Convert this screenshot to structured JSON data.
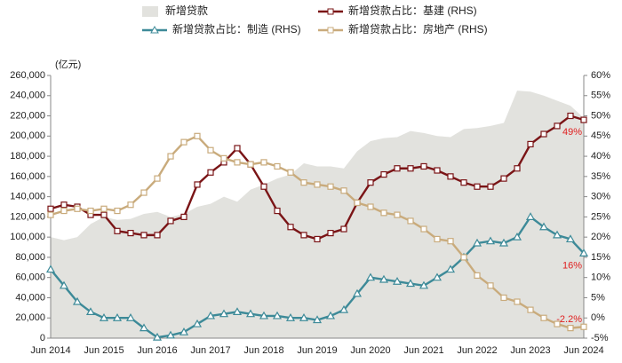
{
  "chart_data": {
    "type": "combo",
    "y_unit_label": "(亿元)",
    "categories": [
      "Jun 2014",
      null,
      null,
      null,
      "Jun 2015",
      null,
      null,
      null,
      "Jun 2016",
      null,
      null,
      null,
      "Jun 2017",
      null,
      null,
      null,
      "Jun 2018",
      null,
      null,
      null,
      "Jun 2019",
      null,
      null,
      null,
      "Jun 2020",
      null,
      null,
      null,
      "Jun 2021",
      null,
      null,
      null,
      "Jun 2022",
      null,
      null,
      null,
      "Jun 2023",
      null,
      null,
      null,
      "Jun 2024"
    ],
    "ylim": [
      0,
      260000
    ],
    "yticks": [
      0,
      {
        "value": 20000,
        "label": "20,000"
      },
      {
        "value": 40000,
        "label": "40,000"
      },
      {
        "value": 60000,
        "label": "60,000"
      },
      {
        "value": 80000,
        "label": "80,000"
      },
      {
        "value": 100000,
        "label": "100,000"
      },
      {
        "value": 120000,
        "label": "120,000"
      },
      {
        "value": 140000,
        "label": "140,000"
      },
      {
        "value": 160000,
        "label": "160,000"
      },
      {
        "value": 180000,
        "label": "180,000"
      },
      {
        "value": 200000,
        "label": "200,000"
      },
      {
        "value": 220000,
        "label": "220,000"
      },
      {
        "value": 240000,
        "label": "240,000"
      },
      {
        "value": 260000,
        "label": "260,000"
      }
    ],
    "y2lim": [
      -5,
      60
    ],
    "y2ticks": [
      {
        "value": -5,
        "label": "-5%"
      },
      {
        "value": 0,
        "label": "0%"
      },
      {
        "value": 5,
        "label": "5%"
      },
      {
        "value": 10,
        "label": "10%"
      },
      {
        "value": 15,
        "label": "15%"
      },
      {
        "value": 20,
        "label": "20%"
      },
      {
        "value": 25,
        "label": "25%"
      },
      {
        "value": 30,
        "label": "30%"
      },
      {
        "value": 35,
        "label": "35%"
      },
      {
        "value": 40,
        "label": "40%"
      },
      {
        "value": 45,
        "label": "45%"
      },
      {
        "value": 50,
        "label": "50%"
      },
      {
        "value": 55,
        "label": "55%"
      },
      {
        "value": 60,
        "label": "60%"
      }
    ],
    "series": [
      {
        "name": "新增贷款",
        "type": "area",
        "color": "#e2e2de",
        "values": [
          100000,
          97000,
          100000,
          113000,
          120000,
          117000,
          118000,
          123000,
          125000,
          120000,
          123000,
          130000,
          133000,
          140000,
          135000,
          147000,
          152000,
          158000,
          162000,
          173000,
          170000,
          170000,
          168000,
          185000,
          195000,
          198000,
          199000,
          205000,
          203000,
          200000,
          199000,
          207000,
          208000,
          210000,
          213000,
          245000,
          244000,
          240000,
          235000,
          230000,
          218000
        ]
      },
      {
        "name": "新增贷款占比：基建 (RHS)",
        "type": "line",
        "marker": "square",
        "axis": "y2",
        "color": "#7a1416",
        "values": [
          27,
          28,
          27.5,
          25.5,
          25.5,
          21.5,
          21,
          20.5,
          20.5,
          24,
          25,
          33,
          36,
          38.5,
          42,
          38,
          32.5,
          26.5,
          22.5,
          20.5,
          19.5,
          21,
          22,
          28.5,
          33.5,
          35.5,
          37,
          37,
          37.5,
          36.5,
          35,
          33.5,
          32.5,
          32.5,
          34.5,
          37,
          43,
          45.5,
          47.5,
          50,
          49
        ],
        "value_labels": [
          null,
          null,
          null,
          null,
          null,
          null,
          null,
          null,
          null,
          null,
          null,
          null,
          null,
          null,
          null,
          null,
          null,
          null,
          null,
          null,
          null,
          null,
          null,
          null,
          null,
          null,
          null,
          null,
          null,
          null,
          null,
          null,
          null,
          null,
          null,
          null,
          null,
          null,
          null,
          null,
          "49%"
        ]
      },
      {
        "name": "新增贷款占比：制造 (RHS)",
        "type": "line",
        "marker": "triangle",
        "axis": "y2",
        "color": "#3d8a98",
        "values": [
          12,
          8,
          4,
          1.5,
          0,
          0,
          0,
          -2.5,
          -4.8,
          -4.3,
          -3.5,
          -1.5,
          0.5,
          1,
          1.5,
          1,
          0.5,
          0.5,
          0,
          0,
          -0.5,
          0.5,
          2,
          6,
          10,
          9.5,
          9,
          8.5,
          8,
          10,
          12,
          15,
          18.5,
          19,
          18.5,
          20,
          25,
          22.5,
          20.5,
          19.5,
          16
        ],
        "value_labels": [
          null,
          null,
          null,
          null,
          null,
          null,
          null,
          null,
          null,
          null,
          null,
          null,
          null,
          null,
          null,
          null,
          null,
          null,
          null,
          null,
          null,
          null,
          null,
          null,
          null,
          null,
          null,
          null,
          null,
          null,
          null,
          null,
          null,
          null,
          null,
          null,
          null,
          null,
          null,
          null,
          "16%"
        ]
      },
      {
        "name": "新增贷款占比：房地产 (RHS)",
        "type": "line",
        "marker": "square",
        "axis": "y2",
        "color": "#c9ab7c",
        "values": [
          25.5,
          26.5,
          27,
          26.5,
          27,
          26.5,
          28,
          31,
          34.5,
          40,
          43.5,
          45,
          41.5,
          39.5,
          38.5,
          38,
          38.5,
          37.5,
          36,
          33.5,
          33,
          32.5,
          31.5,
          28.5,
          27.5,
          26,
          25.5,
          24,
          22,
          19.5,
          19,
          15,
          10.5,
          8,
          5,
          4,
          2,
          0,
          -1.5,
          -2.5,
          -2.2
        ],
        "value_labels": [
          null,
          null,
          null,
          null,
          null,
          null,
          null,
          null,
          null,
          null,
          null,
          null,
          null,
          null,
          null,
          null,
          null,
          null,
          null,
          null,
          null,
          null,
          null,
          null,
          null,
          null,
          null,
          null,
          null,
          null,
          null,
          null,
          null,
          null,
          null,
          null,
          null,
          null,
          null,
          null,
          "-2.2%"
        ]
      }
    ],
    "value_label_color": "#e02020"
  }
}
